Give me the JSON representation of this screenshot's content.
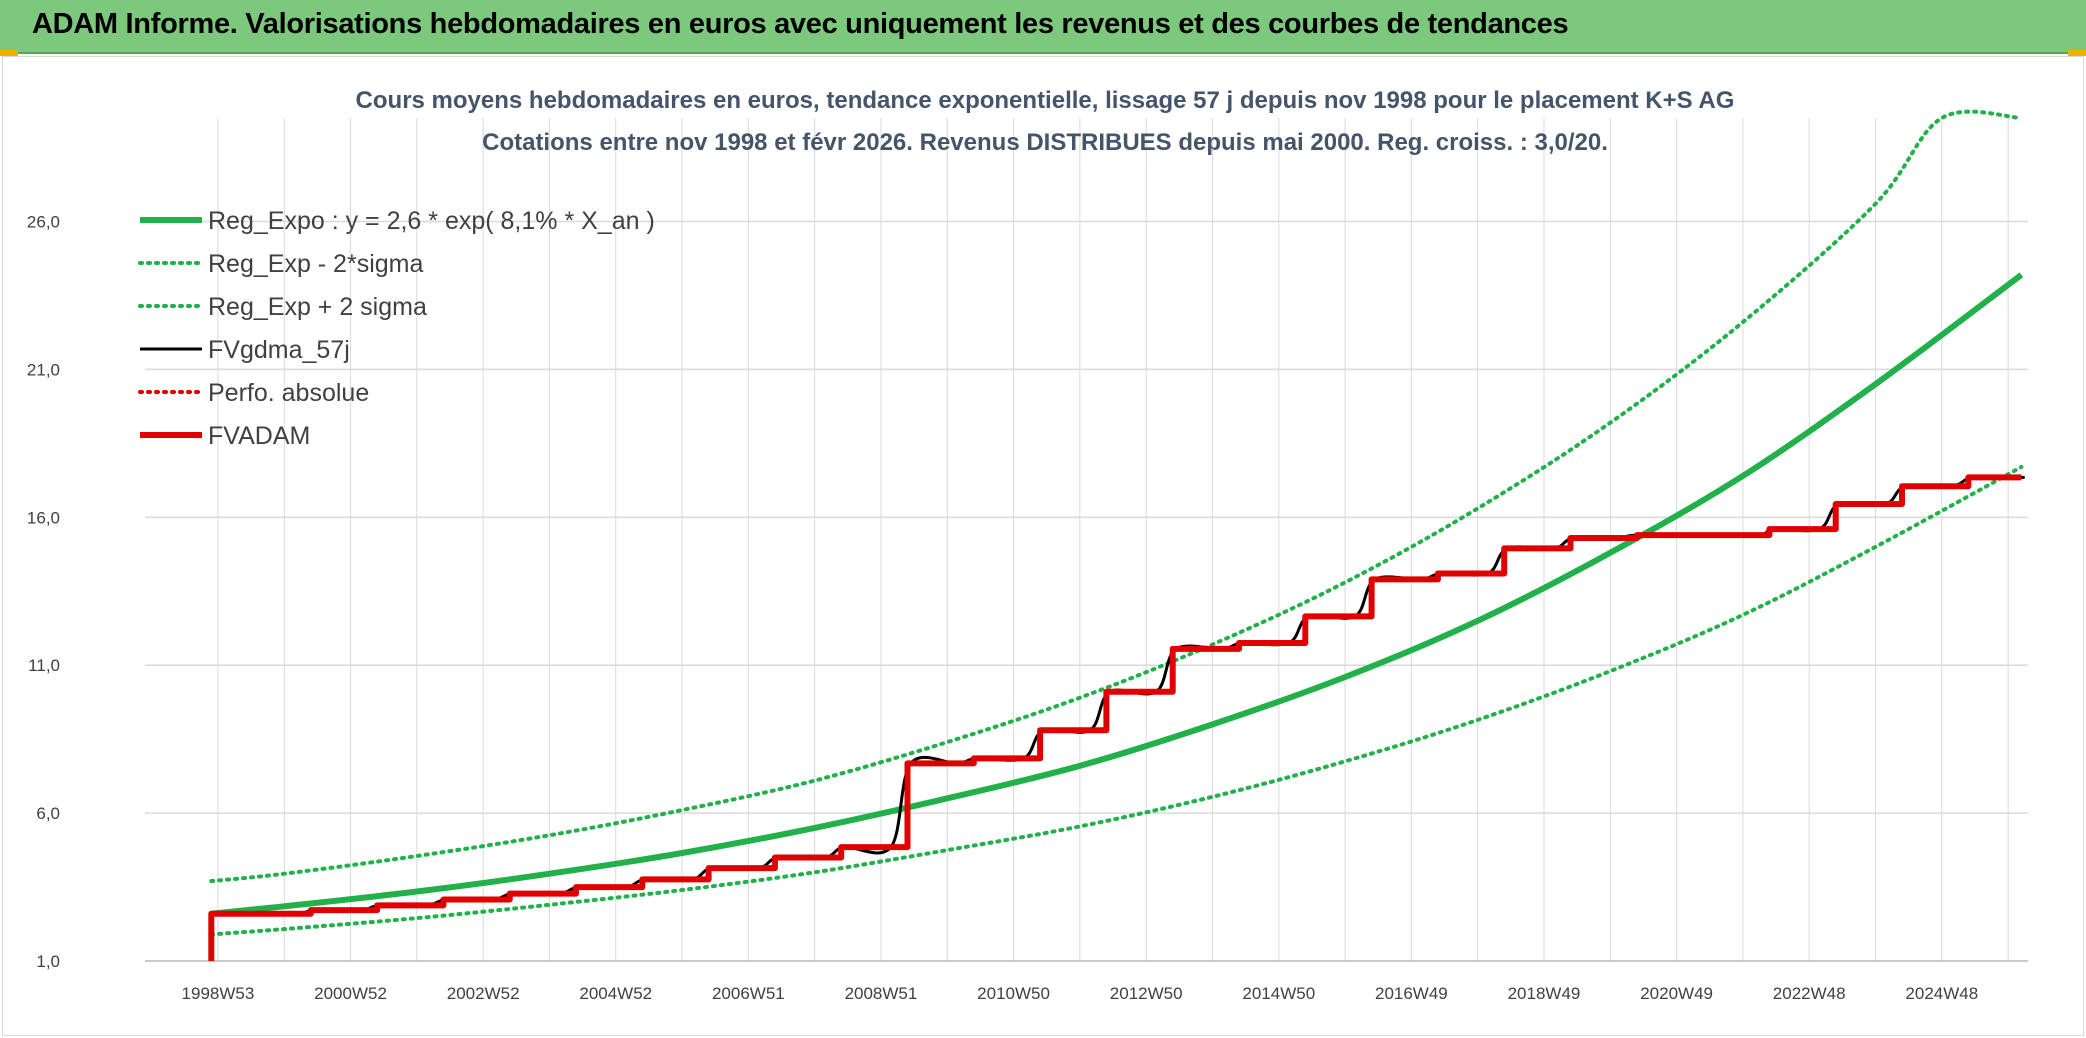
{
  "header": {
    "title": "ADAM Informe. Valorisations hebdomadaires en euros avec uniquement les revenus et des courbes de tendances"
  },
  "colors": {
    "banner": "#7cc87c",
    "trend": "#22b04b",
    "fv57": "#000000",
    "perfo": "#e00000",
    "adam": "#e00000",
    "grid": "#d9d9d9"
  },
  "chart_data": {
    "type": "line",
    "title": [
      "Cours moyens hebdomadaires en euros, tendance exponentielle, lissage 57 j depuis nov 1998 pour le placement K+S AG",
      "Cotations entre nov 1998 et févr 2026. Revenus DISTRIBUES depuis mai 2000. Reg. croiss. : 3,0/20."
    ],
    "x_tick_labels": [
      "1998W53",
      "2000W52",
      "2002W52",
      "2004W52",
      "2006W51",
      "2008W51",
      "2010W50",
      "2012W50",
      "2014W50",
      "2016W49",
      "2018W49",
      "2020W49",
      "2022W48",
      "2024W48"
    ],
    "x_range_years": [
      1997.9,
      2026.3
    ],
    "y_tick_labels": [
      "1,0",
      "6,0",
      "11,0",
      "16,0",
      "21,0",
      "26,0"
    ],
    "ylim": [
      1,
      29.5
    ],
    "grid": true,
    "legend_position": "top-left",
    "series": [
      {
        "name": "Reg_Expo : y = 2,6 * exp( 8,1% *  X_an )",
        "style": "solid-thick",
        "color": "#22b04b",
        "x": [
          1998.9,
          2000,
          2002,
          2004,
          2006,
          2008,
          2010,
          2012,
          2014,
          2016,
          2018,
          2020,
          2022,
          2024,
          2026.2
        ],
        "y": [
          2.6,
          2.85,
          3.35,
          3.95,
          4.65,
          5.5,
          6.5,
          7.6,
          9.0,
          10.6,
          12.5,
          14.8,
          17.4,
          20.5,
          24.2
        ]
      },
      {
        "name": "Reg_Exp - 2*sigma",
        "style": "dotted",
        "color": "#22b04b",
        "x": [
          1998.9,
          2000,
          2002,
          2004,
          2006,
          2008,
          2010,
          2012,
          2014,
          2016,
          2018,
          2020,
          2022,
          2024,
          2026.2
        ],
        "y": [
          1.9,
          2.08,
          2.45,
          2.9,
          3.4,
          4.0,
          4.75,
          5.55,
          6.55,
          7.75,
          9.15,
          10.8,
          12.7,
          15.0,
          17.7
        ]
      },
      {
        "name": "Reg_Exp + 2 sigma",
        "style": "dotted",
        "color": "#22b04b",
        "x": [
          1998.9,
          2000,
          2002,
          2004,
          2006,
          2008,
          2010,
          2012,
          2014,
          2016,
          2018,
          2020,
          2022,
          2024,
          2025,
          2026.2
        ],
        "y": [
          3.7,
          3.95,
          4.55,
          5.25,
          6.1,
          7.1,
          8.4,
          9.9,
          11.7,
          13.8,
          16.3,
          19.2,
          22.6,
          26.6,
          29.5,
          29.5
        ]
      },
      {
        "name": "FVgdma_57j",
        "style": "solid",
        "color": "#000000",
        "steps": [
          [
            1998.9,
            2.6
          ],
          [
            2000.4,
            2.72
          ],
          [
            2001.4,
            2.88
          ],
          [
            2002.4,
            3.08
          ],
          [
            2003.4,
            3.28
          ],
          [
            2004.4,
            3.5
          ],
          [
            2005.4,
            3.76
          ],
          [
            2006.4,
            4.14
          ],
          [
            2007.4,
            4.5
          ],
          [
            2008.4,
            4.85
          ],
          [
            2009.4,
            7.68
          ],
          [
            2010.4,
            7.85
          ],
          [
            2011.4,
            8.8
          ],
          [
            2012.4,
            10.1
          ],
          [
            2013.4,
            11.55
          ],
          [
            2014.4,
            11.75
          ],
          [
            2015.4,
            12.65
          ],
          [
            2016.4,
            13.9
          ],
          [
            2017.4,
            14.1
          ],
          [
            2018.4,
            14.95
          ],
          [
            2019.4,
            15.3
          ],
          [
            2020.4,
            15.4
          ],
          [
            2022.4,
            15.6
          ],
          [
            2023.4,
            16.45
          ],
          [
            2024.4,
            17.05
          ],
          [
            2025.4,
            17.35
          ],
          [
            2026.2,
            17.35
          ]
        ]
      },
      {
        "name": "Perfo. absolue",
        "style": "dotted",
        "color": "#e00000",
        "steps": []
      },
      {
        "name": "FVADAM",
        "style": "solid-thick",
        "color": "#e00000",
        "start": [
          1998.9,
          1.0
        ],
        "steps": [
          [
            1998.9,
            2.6
          ],
          [
            2000.4,
            2.72
          ],
          [
            2001.4,
            2.88
          ],
          [
            2002.4,
            3.08
          ],
          [
            2003.4,
            3.28
          ],
          [
            2004.4,
            3.5
          ],
          [
            2005.4,
            3.76
          ],
          [
            2006.4,
            4.14
          ],
          [
            2007.4,
            4.5
          ],
          [
            2008.4,
            4.85
          ],
          [
            2009.4,
            7.68
          ],
          [
            2010.4,
            7.85
          ],
          [
            2011.4,
            8.8
          ],
          [
            2012.4,
            10.1
          ],
          [
            2013.4,
            11.55
          ],
          [
            2014.4,
            11.75
          ],
          [
            2015.4,
            12.65
          ],
          [
            2016.4,
            13.9
          ],
          [
            2017.4,
            14.1
          ],
          [
            2018.4,
            14.95
          ],
          [
            2019.4,
            15.3
          ],
          [
            2020.4,
            15.4
          ],
          [
            2022.4,
            15.6
          ],
          [
            2023.4,
            16.45
          ],
          [
            2024.4,
            17.05
          ],
          [
            2025.4,
            17.35
          ],
          [
            2026.2,
            17.35
          ]
        ]
      }
    ]
  }
}
